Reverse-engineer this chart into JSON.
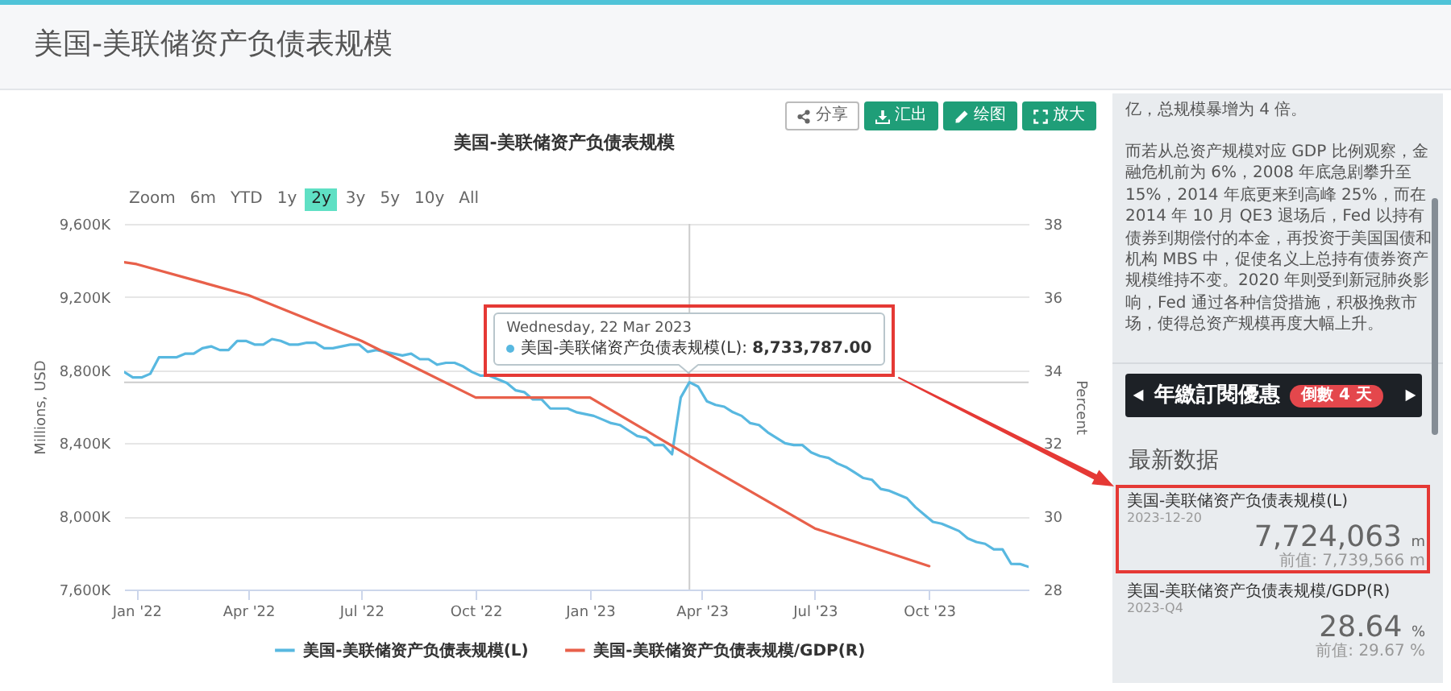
{
  "chart_data": [
    {
      "type": "other",
      "title": "美国-美联储资产负债表规模"
    },
    {
      "type": "line",
      "title": "美国-美联储资产负债表规模",
      "ylabel": "Millions, USD",
      "y2label": "Percent",
      "xlim": [
        "2021-12-22",
        "2023-12-20"
      ],
      "xticks": [
        {
          "value": "2022-01-01",
          "label": "Jan '22"
        },
        {
          "value": "2022-04-01",
          "label": "Apr '22"
        },
        {
          "value": "2022-07-01",
          "label": "Jul '22"
        },
        {
          "value": "2022-10-01",
          "label": "Oct '22"
        },
        {
          "value": "2023-01-01",
          "label": "Jan '23"
        },
        {
          "value": "2023-04-01",
          "label": "Apr '23"
        },
        {
          "value": "2023-07-01",
          "label": "Jul '23"
        },
        {
          "value": "2023-10-01",
          "label": "Oct '23"
        }
      ],
      "ylim": [
        7600000,
        9600000
      ],
      "yticks": [
        {
          "value": 7600000,
          "label": "7,600K"
        },
        {
          "value": 8000000,
          "label": "8,000K"
        },
        {
          "value": 8400000,
          "label": "8,400K"
        },
        {
          "value": 8800000,
          "label": "8,800K"
        },
        {
          "value": 9200000,
          "label": "9,200K"
        },
        {
          "value": 9600000,
          "label": "9,600K"
        }
      ],
      "y2lim": [
        28,
        38
      ],
      "y2ticks": [
        28,
        30,
        32,
        34,
        36,
        38
      ],
      "grid": "y",
      "legend": "bottom",
      "series": [
        {
          "name": "美国-美联储资产负债表规模(L)",
          "color": "#58b8e0",
          "x": [
            "2021-12-22",
            "2021-12-29",
            "2022-01-05",
            "2022-01-12",
            "2022-01-19",
            "2022-01-26",
            "2022-02-02",
            "2022-02-09",
            "2022-02-16",
            "2022-02-23",
            "2022-03-02",
            "2022-03-09",
            "2022-03-16",
            "2022-03-23",
            "2022-03-30",
            "2022-04-06",
            "2022-04-13",
            "2022-04-20",
            "2022-04-27",
            "2022-05-04",
            "2022-05-11",
            "2022-05-18",
            "2022-05-25",
            "2022-06-01",
            "2022-06-08",
            "2022-06-15",
            "2022-06-22",
            "2022-06-29",
            "2022-07-06",
            "2022-07-13",
            "2022-07-20",
            "2022-07-27",
            "2022-08-03",
            "2022-08-10",
            "2022-08-17",
            "2022-08-24",
            "2022-08-31",
            "2022-09-07",
            "2022-09-14",
            "2022-09-21",
            "2022-09-28",
            "2022-10-05",
            "2022-10-12",
            "2022-10-19",
            "2022-10-26",
            "2022-11-02",
            "2022-11-09",
            "2022-11-16",
            "2022-11-23",
            "2022-11-30",
            "2022-12-07",
            "2022-12-14",
            "2022-12-21",
            "2022-12-28",
            "2023-01-04",
            "2023-01-11",
            "2023-01-18",
            "2023-01-25",
            "2023-02-01",
            "2023-02-08",
            "2023-02-15",
            "2023-02-22",
            "2023-03-01",
            "2023-03-08",
            "2023-03-15",
            "2023-03-22",
            "2023-03-29",
            "2023-04-05",
            "2023-04-12",
            "2023-04-19",
            "2023-04-26",
            "2023-05-03",
            "2023-05-10",
            "2023-05-17",
            "2023-05-24",
            "2023-05-31",
            "2023-06-07",
            "2023-06-14",
            "2023-06-21",
            "2023-06-28",
            "2023-07-05",
            "2023-07-12",
            "2023-07-19",
            "2023-07-26",
            "2023-08-02",
            "2023-08-09",
            "2023-08-16",
            "2023-08-23",
            "2023-08-30",
            "2023-09-06",
            "2023-09-13",
            "2023-09-20",
            "2023-09-27",
            "2023-10-04",
            "2023-10-11",
            "2023-10-18",
            "2023-10-25",
            "2023-11-01",
            "2023-11-08",
            "2023-11-15",
            "2023-11-22",
            "2023-11-29",
            "2023-12-06",
            "2023-12-13",
            "2023-12-20"
          ],
          "values": [
            8790000,
            8760000,
            8760000,
            8780000,
            8870000,
            8870000,
            8870000,
            8890000,
            8890000,
            8920000,
            8930000,
            8910000,
            8910000,
            8960000,
            8960000,
            8940000,
            8940000,
            8970000,
            8960000,
            8940000,
            8940000,
            8950000,
            8950000,
            8920000,
            8920000,
            8930000,
            8940000,
            8940000,
            8900000,
            8910000,
            8900000,
            8890000,
            8880000,
            8890000,
            8860000,
            8860000,
            8830000,
            8840000,
            8840000,
            8820000,
            8790000,
            8770000,
            8770000,
            8750000,
            8730000,
            8690000,
            8680000,
            8640000,
            8640000,
            8590000,
            8590000,
            8590000,
            8570000,
            8560000,
            8550000,
            8530000,
            8510000,
            8500000,
            8470000,
            8440000,
            8430000,
            8390000,
            8390000,
            8340000,
            8650000,
            8733787,
            8710000,
            8630000,
            8610000,
            8600000,
            8570000,
            8550000,
            8510000,
            8500000,
            8460000,
            8430000,
            8400000,
            8390000,
            8390000,
            8350000,
            8330000,
            8320000,
            8290000,
            8270000,
            8240000,
            8210000,
            8200000,
            8150000,
            8140000,
            8120000,
            8100000,
            8050000,
            8010000,
            7970000,
            7960000,
            7940000,
            7920000,
            7880000,
            7860000,
            7850000,
            7820000,
            7820000,
            7740000,
            7739566,
            7724063
          ]
        },
        {
          "name": "美国-美联储资产负债表规模/GDP(R)",
          "color": "#e8604a",
          "axis": "y2",
          "x": [
            "2021-12-22",
            "2022-01-01",
            "2022-04-01",
            "2022-07-01",
            "2022-10-01",
            "2023-01-01",
            "2023-04-01",
            "2023-07-01",
            "2023-10-01"
          ],
          "values": [
            36.95,
            36.9,
            36.05,
            34.8,
            33.25,
            33.25,
            31.45,
            29.67,
            28.64
          ]
        }
      ],
      "ref_lines": [
        {
          "axis": "x",
          "value": "2023-03-22",
          "color": "#cccccc"
        },
        {
          "axis": "y",
          "value": 8733787,
          "color": "#cccccc"
        }
      ],
      "annotations": [
        "分享",
        "汇出",
        "绘图",
        "放大",
        "Zoom",
        "6m",
        "YTD",
        "1y",
        "2y",
        "3y",
        "5y",
        "10y",
        "All",
        "Wednesday, 22 Mar 2023",
        {
          "text": "美国-美联储资产负债表规模(L): 8,733,787.00",
          "x": "2023-03-22",
          "y": 8733787
        }
      ]
    },
    {
      "type": "other",
      "title": "最新数据",
      "annotations": [
        "亿，总规模暴增为 4 倍。",
        "而若从总资产规模对应 GDP 比例观察，金融危机前为 6%，2008 年底急剧攀升至 15%，2014 年底更来到高峰 25%，而在 2014 年 10 月 QE3 退场后，Fed 以持有债券到期偿付的本金，再投资于美国国债和机构 MBS 中，促使名义上总持有债券资产规模维持不变。2020 年则受到新冠肺炎影响，Fed 通过各种信贷措施，积极挽救市场，使得总资产规模再度大幅上升。",
        "年繳訂閱優惠",
        "倒數 4 天",
        "美国-美联储资产负债表规模(L)",
        "2023-12-20",
        "7,724,063 m",
        "前值: 7,739,566 m",
        "美国-美联储资产负债表规模/GDP(R)",
        "2023-Q4",
        "28.64 %",
        "前值: 29.67 %"
      ]
    }
  ]
}
